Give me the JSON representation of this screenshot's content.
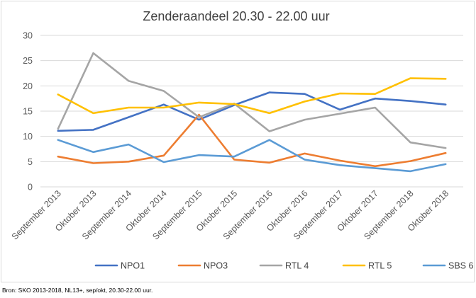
{
  "chart_data": {
    "type": "line",
    "title": "Zenderaandeel 20.30 - 22.00 uur",
    "xlabel": "",
    "ylabel": "",
    "categories": [
      "September 2013",
      "Oktober 2013",
      "September 2014",
      "Oktober 2014",
      "September 2015",
      "Oktober 2015",
      "September 2016",
      "Oktober 2016",
      "September 2017",
      "Oktober 2017",
      "September 2018",
      "Oktober 2018"
    ],
    "ylim": [
      0,
      30
    ],
    "yticks": [
      0,
      5,
      10,
      15,
      20,
      25,
      30
    ],
    "grid": "horizontal",
    "legend_position": "bottom",
    "series": [
      {
        "name": "NPO1",
        "color": "#4472c4",
        "values": [
          11.1,
          11.3,
          13.8,
          16.3,
          13.3,
          16.2,
          18.7,
          18.4,
          15.3,
          17.5,
          17.0,
          16.3
        ]
      },
      {
        "name": "NPO3",
        "color": "#ed7d31",
        "values": [
          6.0,
          4.7,
          5.0,
          6.2,
          14.3,
          5.4,
          4.8,
          6.6,
          5.2,
          4.1,
          5.1,
          6.7
        ]
      },
      {
        "name": "RTL 4",
        "color": "#a5a5a5",
        "values": [
          11.5,
          26.5,
          21.0,
          19.0,
          13.8,
          16.5,
          11.0,
          13.3,
          14.5,
          15.7,
          8.8,
          7.7
        ]
      },
      {
        "name": "RTL 5",
        "color": "#ffc000",
        "values": [
          18.3,
          14.6,
          15.7,
          15.7,
          16.7,
          16.4,
          14.6,
          16.9,
          18.5,
          18.4,
          21.5,
          21.4
        ]
      },
      {
        "name": "SBS 6",
        "color": "#5b9bd5",
        "values": [
          9.3,
          6.9,
          8.4,
          4.9,
          6.3,
          6.0,
          9.3,
          5.4,
          4.3,
          3.7,
          3.1,
          4.5
        ]
      }
    ]
  },
  "source_note": "Bron: SKO 2013-2018, NL13+, sep/okt, 20.30-22.00 uur."
}
